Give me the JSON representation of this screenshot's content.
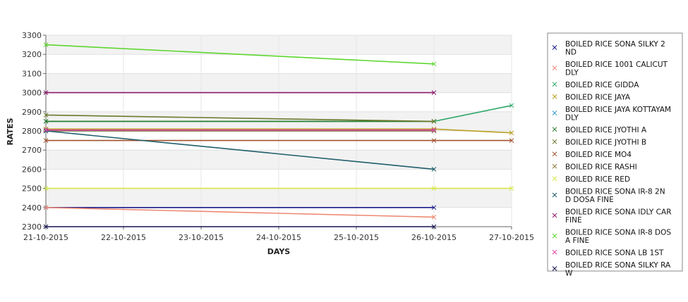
{
  "chart_data": {
    "type": "line",
    "xlabel": "DAYS",
    "ylabel": "RATES",
    "categories": [
      "21-10-2015",
      "22-10-2015",
      "23-10-2015",
      "24-10-2015",
      "25-10-2015",
      "26-10-2015",
      "27-10-2015"
    ],
    "ylim": [
      2300,
      3300
    ],
    "yticks": [
      2300,
      2400,
      2500,
      2600,
      2700,
      2800,
      2900,
      3000,
      3100,
      3200,
      3300
    ],
    "grid": true,
    "legend_position": "right",
    "series": [
      {
        "name": "BOILED RICE SONA SILKY 2 ND",
        "color": "#1a1a8c",
        "points": [
          [
            "21-10-2015",
            2400
          ],
          [
            "26-10-2015",
            2400
          ]
        ]
      },
      {
        "name": "BOILED RICE 1001 CALICUT DLY",
        "color": "#ee8a74",
        "points": [
          [
            "21-10-2015",
            2400
          ],
          [
            "26-10-2015",
            2350
          ]
        ]
      },
      {
        "name": "BOILED RICE GIDDA",
        "color": "#2ea86a",
        "points": [
          [
            "21-10-2015",
            2850
          ],
          [
            "26-10-2015",
            2850
          ],
          [
            "27-10-2015",
            2933
          ]
        ]
      },
      {
        "name": "BOILED RICE JAYA",
        "color": "#b8a020",
        "points": [
          [
            "21-10-2015",
            2810
          ],
          [
            "26-10-2015",
            2810
          ],
          [
            "27-10-2015",
            2790
          ]
        ]
      },
      {
        "name": "BOILED RICE JAYA KOTTAYAM DLY",
        "color": "#3399cc",
        "points": [
          [
            "21-10-2015",
            2800
          ],
          [
            "26-10-2015",
            2800
          ]
        ]
      },
      {
        "name": "BOILED RICE JYOTHI A",
        "color": "#2e7d32",
        "points": [
          [
            "21-10-2015",
            2850
          ],
          [
            "26-10-2015",
            2850
          ]
        ]
      },
      {
        "name": "BOILED RICE JYOTHI B",
        "color": "#6b7a2e",
        "points": [
          [
            "21-10-2015",
            2883
          ],
          [
            "26-10-2015",
            2850
          ]
        ]
      },
      {
        "name": "BOILED RICE MO4",
        "color": "#a0522d",
        "points": [
          [
            "21-10-2015",
            2750
          ],
          [
            "26-10-2015",
            2750
          ],
          [
            "27-10-2015",
            2750
          ]
        ]
      },
      {
        "name": "BOILED RICE RASHI",
        "color": "#8b7a3e",
        "points": [
          [
            "21-10-2015",
            2800
          ],
          [
            "26-10-2015",
            2800
          ]
        ]
      },
      {
        "name": "BOILED RICE RED",
        "color": "#d4e84a",
        "points": [
          [
            "21-10-2015",
            2500
          ],
          [
            "26-10-2015",
            2500
          ],
          [
            "27-10-2015",
            2500
          ]
        ]
      },
      {
        "name": "BOILED RICE SONA  IR-8 2ND DOSA FINE",
        "color": "#1f5f6b",
        "points": [
          [
            "21-10-2015",
            2800
          ],
          [
            "26-10-2015",
            2600
          ]
        ]
      },
      {
        "name": "BOILED RICE SONA IDLY CAR FINE",
        "color": "#8b1a6b",
        "points": [
          [
            "21-10-2015",
            3000
          ],
          [
            "26-10-2015",
            3000
          ]
        ]
      },
      {
        "name": "BOILED RICE SONA IR-8 DOSA FINE",
        "color": "#5cd62e",
        "points": [
          [
            "21-10-2015",
            3250
          ],
          [
            "26-10-2015",
            3150
          ]
        ]
      },
      {
        "name": "BOILED RICE SONA LB 1ST",
        "color": "#e040b0",
        "points": [
          [
            "21-10-2015",
            2805
          ],
          [
            "26-10-2015",
            2805
          ]
        ]
      },
      {
        "name": "BOILED RICE SONA SILKY RAW",
        "color": "#141450",
        "points": [
          [
            "21-10-2015",
            2300
          ],
          [
            "26-10-2015",
            2300
          ]
        ]
      }
    ],
    "legend_lines": [
      [
        "BOILED RICE SONA SILKY 2",
        "ND"
      ],
      [
        "BOILED RICE 1001 CALICUT",
        "DLY"
      ],
      [
        "BOILED RICE GIDDA"
      ],
      [
        "BOILED RICE JAYA"
      ],
      [
        "BOILED RICE JAYA KOTTAYAM",
        " DLY"
      ],
      [
        "BOILED RICE JYOTHI A"
      ],
      [
        "BOILED RICE JYOTHI B"
      ],
      [
        "BOILED RICE MO4"
      ],
      [
        "BOILED RICE RASHI"
      ],
      [
        "BOILED RICE RED"
      ],
      [
        "BOILED RICE SONA  IR-8 2N",
        "D DOSA FINE"
      ],
      [
        "BOILED RICE SONA IDLY CAR",
        " FINE"
      ],
      [
        "BOILED RICE SONA IR-8 DOS",
        "A FINE"
      ],
      [
        "BOILED RICE SONA LB 1ST"
      ],
      [
        "BOILED RICE SONA SILKY RA",
        "W"
      ]
    ]
  }
}
